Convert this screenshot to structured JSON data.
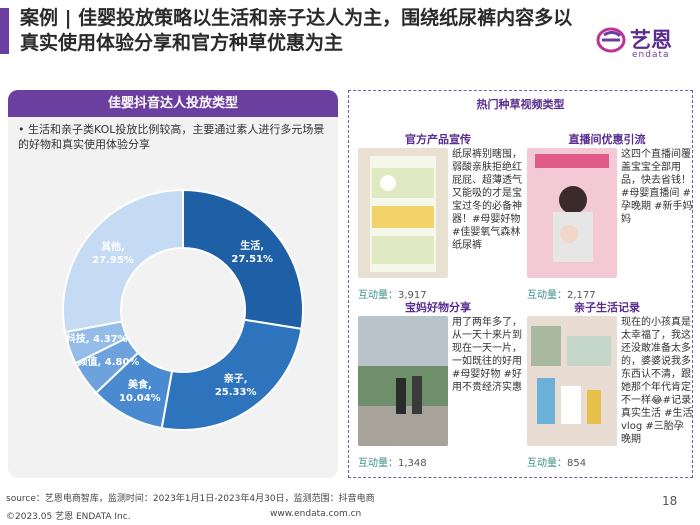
{
  "title": "案例 | 佳婴投放策略以生活和亲子达人为主，围绕纸尿裤内容多以真实使用体验分享和官方种草优惠为主",
  "logo": {
    "cn": "艺恩",
    "en": "endata"
  },
  "left": {
    "header": "佳婴抖音达人投放类型",
    "bullet": "生活和亲子类KOL投放比例较高，主要通过素人进行多元场景的好物和真实使用体验分享"
  },
  "chart_data": {
    "type": "pie",
    "categories": [
      "生活",
      "亲子",
      "美食",
      "颜值",
      "科技",
      "其他"
    ],
    "values": [
      27.51,
      25.33,
      10.04,
      4.8,
      4.37,
      27.95
    ],
    "labels": [
      "27.51%",
      "25.33%",
      "10.04%",
      "4.80%",
      "4.37%",
      "27.95%"
    ],
    "colors": [
      "#1f5fa6",
      "#2e74bd",
      "#4a8ad0",
      "#6ea2dc",
      "#93bce8",
      "#c5daf3"
    ]
  },
  "right": {
    "header": "热门种草视频类型",
    "cells": [
      {
        "title": "官方产品宣传",
        "text": "纸尿裤别瞎囤，弱酸亲肤拒绝红屁屁、超薄透气又能吸的才是宝宝过冬的必备神器！#母婴好物#佳婴氧气森林纸尿裤",
        "metric_label": "互动量：",
        "metric_value": "3,917"
      },
      {
        "title": "直播间优惠引流",
        "text": "这四个直播间覆盖宝宝全部用品，快去省钱！#母婴直播间 #孕晚期 #新手妈妈",
        "metric_label": "互动量：",
        "metric_value": "2,177"
      },
      {
        "title": "宝妈好物分享",
        "text": "用了两年多了，从一天十来片到现在一天一片，一如既往的好用#母婴好物 #好用不贵经济实惠",
        "metric_label": "互动量：",
        "metric_value": "1,348"
      },
      {
        "title": "亲子生活记录",
        "text": "现在的小孩真是太幸福了，我这还没敢准备太多的，婆婆说我多东西认不清，跟她那个年代肯定不一样😂#记录真实生活 #生活vlog #三胎孕晚期",
        "metric_label": "互动量：",
        "metric_value": "854"
      }
    ]
  },
  "footer": {
    "source": "source：艺恩电商智库，监测时间：2023年1月1日-2023年4月30日，监测范围：抖音电商",
    "copyright": "©2023.05 艺恩 ENDATA Inc.",
    "url": "www.endata.com.cn",
    "page": "18"
  }
}
